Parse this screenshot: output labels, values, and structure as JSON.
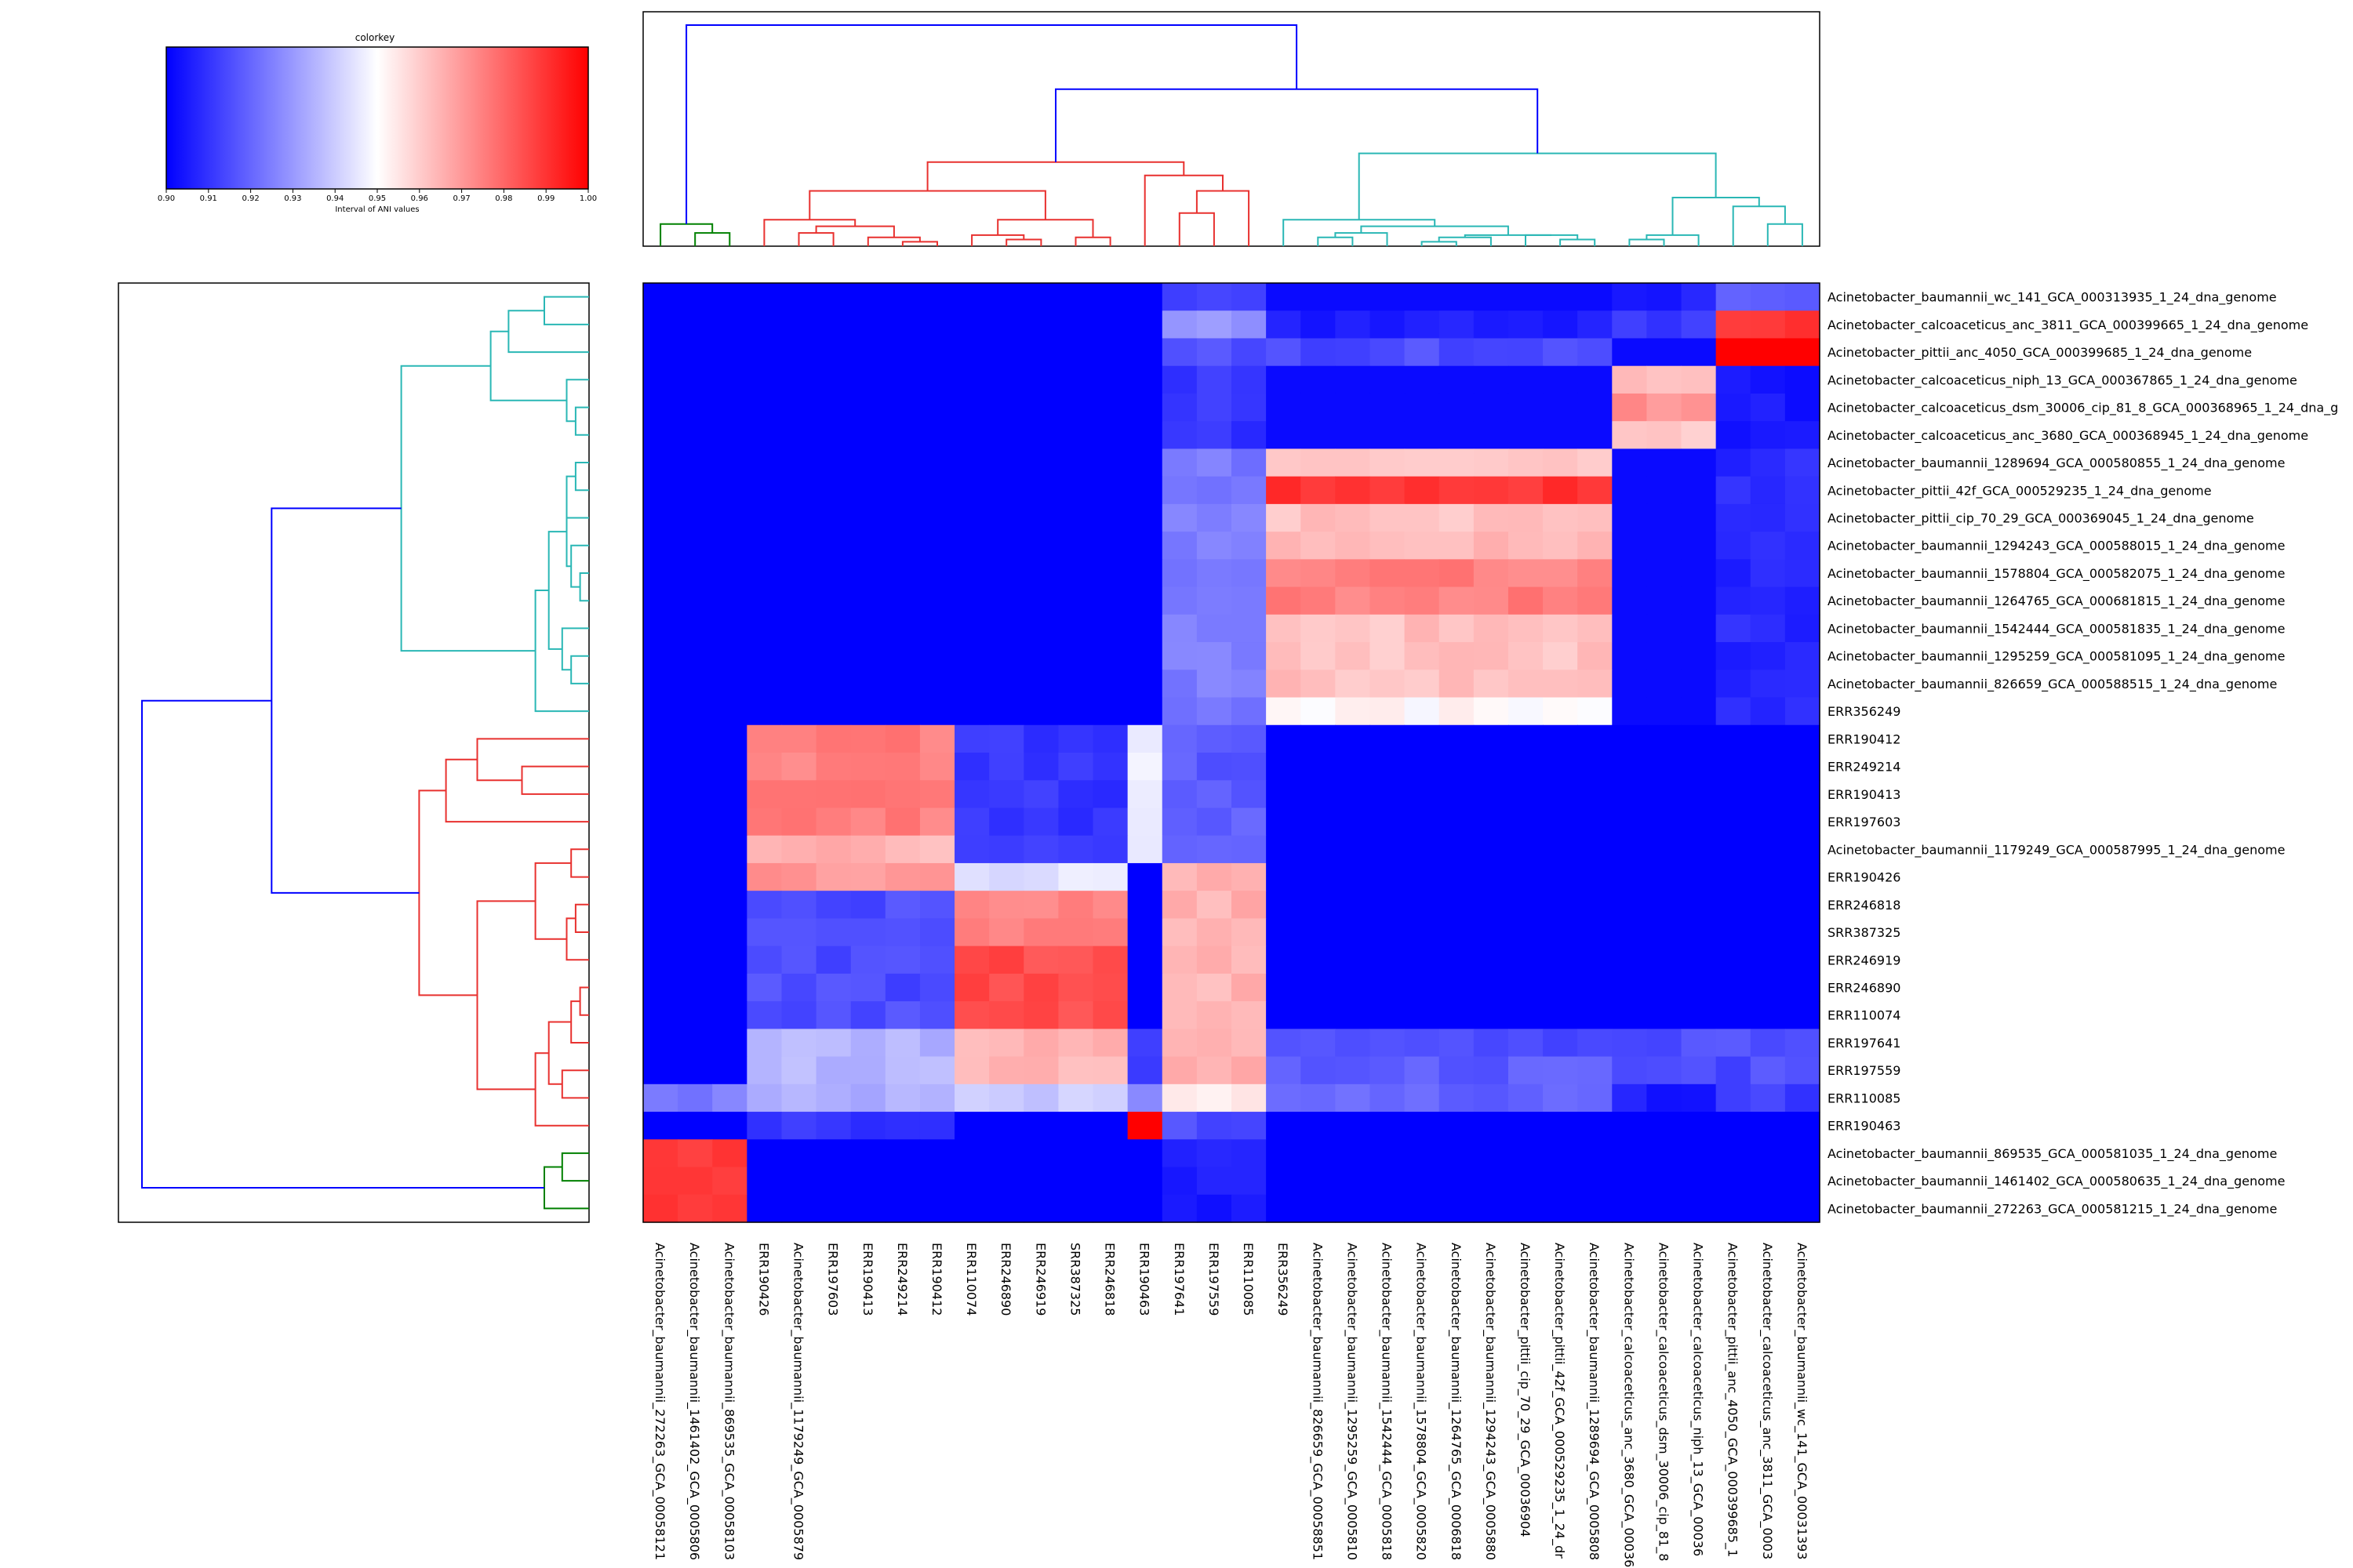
{
  "chart_data": {
    "type": "heatmap",
    "colorkey": {
      "title": "colorkey",
      "label": "Interval of ANI values",
      "range": [
        0.9,
        1.0
      ],
      "colors": [
        "#0000ff",
        "#ffffff",
        "#ff0000"
      ],
      "ticks": [
        "0.90",
        "0.91",
        "0.92",
        "0.93",
        "0.94",
        "0.95",
        "0.96",
        "0.97",
        "0.98",
        "0.99",
        "1.00"
      ]
    },
    "row_labels": [
      "Acinetobacter_baumannii_wc_141_GCA_000313935_1_24_dna_genome",
      "Acinetobacter_calcoaceticus_anc_3811_GCA_000399665_1_24_dna_genome",
      "Acinetobacter_pittii_anc_4050_GCA_000399685_1_24_dna_genome",
      "Acinetobacter_calcoaceticus_niph_13_GCA_000367865_1_24_dna_genome",
      "Acinetobacter_calcoaceticus_dsm_30006_cip_81_8_GCA_000368965_1_24_dna_g",
      "Acinetobacter_calcoaceticus_anc_3680_GCA_000368945_1_24_dna_genome",
      "Acinetobacter_baumannii_1289694_GCA_000580855_1_24_dna_genome",
      "Acinetobacter_pittii_42f_GCA_000529235_1_24_dna_genome",
      "Acinetobacter_pittii_cip_70_29_GCA_000369045_1_24_dna_genome",
      "Acinetobacter_baumannii_1294243_GCA_000588015_1_24_dna_genome",
      "Acinetobacter_baumannii_1578804_GCA_000582075_1_24_dna_genome",
      "Acinetobacter_baumannii_1264765_GCA_000681815_1_24_dna_genome",
      "Acinetobacter_baumannii_1542444_GCA_000581835_1_24_dna_genome",
      "Acinetobacter_baumannii_1295259_GCA_000581095_1_24_dna_genome",
      "Acinetobacter_baumannii_826659_GCA_000588515_1_24_dna_genome",
      "ERR356249",
      "ERR190412",
      "ERR249214",
      "ERR190413",
      "ERR197603",
      "Acinetobacter_baumannii_1179249_GCA_000587995_1_24_dna_genome",
      "ERR190426",
      "ERR246818",
      "SRR387325",
      "ERR246919",
      "ERR246890",
      "ERR110074",
      "ERR197641",
      "ERR197559",
      "ERR110085",
      "ERR190463",
      "Acinetobacter_baumannii_869535_GCA_000581035_1_24_dna_genome",
      "Acinetobacter_baumannii_1461402_GCA_000580635_1_24_dna_genome",
      "Acinetobacter_baumannii_272263_GCA_000581215_1_24_dna_genome"
    ],
    "col_labels": [
      "Acinetobacter_baumannii_272263_GCA_00058121",
      "Acinetobacter_baumannii_1461402_GCA_0005806",
      "Acinetobacter_baumannii_869535_GCA_00058103",
      "ERR190426",
      "Acinetobacter_baumannii_1179249_GCA_0005879",
      "ERR197603",
      "ERR190413",
      "ERR249214",
      "ERR190412",
      "ERR110074",
      "ERR246890",
      "ERR246919",
      "SRR387325",
      "ERR246818",
      "ERR190463",
      "ERR197641",
      "ERR197559",
      "ERR110085",
      "ERR356249",
      "Acinetobacter_baumannii_826659_GCA_00058851",
      "Acinetobacter_baumannii_1295259_GCA_0005810",
      "Acinetobacter_baumannii_1542444_GCA_0005818",
      "Acinetobacter_baumannii_1578804_GCA_0005820",
      "Acinetobacter_baumannii_1264765_GCA_0006818",
      "Acinetobacter_baumannii_1294243_GCA_0005880",
      "Acinetobacter_pittii_cip_70_29_GCA_00036904",
      "Acinetobacter_pittii_42f_GCA_000529235_1_24_dr",
      "Acinetobacter_baumannii_1289694_GCA_0005808",
      "Acinetobacter_calcoaceticus_anc_3680_GCA_00036",
      "Acinetobacter_calcoaceticus_dsm_30006_cip_81_8",
      "Acinetobacter_calcoaceticus_niph_13_GCA_00036",
      "Acinetobacter_pittii_anc_4050_GCA_000399685_1",
      "Acinetobacter_calcoaceticus_anc_3811_GCA_0003",
      "Acinetobacter_baumannii_wc_141_GCA_00031393"
    ],
    "group_columns": [
      0,
      3,
      9,
      14,
      15,
      18,
      28,
      31
    ],
    "block_values": [
      [
        0.9,
        0.9,
        0.9,
        0.9,
        0.913,
        0.902,
        0.905,
        0.918
      ],
      [
        0.9,
        0.9,
        0.9,
        0.9,
        0.929,
        0.905,
        0.912,
        0.99
      ],
      [
        0.9,
        0.9,
        0.9,
        0.9,
        0.915,
        0.915,
        0.902,
        1.0
      ],
      [
        0.9,
        0.9,
        0.9,
        0.9,
        0.91,
        0.902,
        0.962,
        0.904
      ],
      [
        0.9,
        0.9,
        0.9,
        0.9,
        0.91,
        0.902,
        0.972,
        0.904
      ],
      [
        0.9,
        0.9,
        0.9,
        0.9,
        0.91,
        0.902,
        0.962,
        0.904
      ],
      [
        0.9,
        0.9,
        0.9,
        0.9,
        0.924,
        0.962,
        0.902,
        0.908
      ],
      [
        0.9,
        0.9,
        0.9,
        0.9,
        0.924,
        0.99,
        0.902,
        0.908
      ],
      [
        0.9,
        0.9,
        0.9,
        0.9,
        0.924,
        0.962,
        0.902,
        0.908
      ],
      [
        0.9,
        0.9,
        0.9,
        0.9,
        0.924,
        0.965,
        0.902,
        0.908
      ],
      [
        0.9,
        0.9,
        0.9,
        0.9,
        0.924,
        0.975,
        0.902,
        0.908
      ],
      [
        0.9,
        0.9,
        0.9,
        0.9,
        0.924,
        0.975,
        0.902,
        0.908
      ],
      [
        0.9,
        0.9,
        0.9,
        0.9,
        0.924,
        0.962,
        0.902,
        0.908
      ],
      [
        0.9,
        0.9,
        0.9,
        0.9,
        0.924,
        0.962,
        0.902,
        0.908
      ],
      [
        0.9,
        0.9,
        0.9,
        0.9,
        0.924,
        0.962,
        0.902,
        0.908
      ],
      [
        0.9,
        0.9,
        0.9,
        0.9,
        0.924,
        0.951,
        0.902,
        0.908
      ],
      [
        0.9,
        0.975,
        0.911,
        0.945,
        0.918,
        0.9,
        0.9,
        0.9
      ],
      [
        0.9,
        0.975,
        0.911,
        0.945,
        0.918,
        0.9,
        0.9,
        0.9
      ],
      [
        0.9,
        0.975,
        0.911,
        0.945,
        0.918,
        0.9,
        0.9,
        0.9
      ],
      [
        0.9,
        0.975,
        0.911,
        0.945,
        0.918,
        0.9,
        0.9,
        0.9
      ],
      [
        0.9,
        0.965,
        0.911,
        0.945,
        0.918,
        0.9,
        0.9,
        0.9
      ],
      [
        0.9,
        0.97,
        0.945,
        0.9,
        0.965,
        0.9,
        0.9,
        0.9
      ],
      [
        0.9,
        0.915,
        0.975,
        0.9,
        0.965,
        0.9,
        0.9,
        0.9
      ],
      [
        0.9,
        0.915,
        0.975,
        0.9,
        0.965,
        0.9,
        0.9,
        0.9
      ],
      [
        0.9,
        0.915,
        0.985,
        0.9,
        0.965,
        0.9,
        0.9,
        0.9
      ],
      [
        0.9,
        0.915,
        0.985,
        0.9,
        0.965,
        0.9,
        0.9,
        0.9
      ],
      [
        0.9,
        0.915,
        0.985,
        0.9,
        0.965,
        0.9,
        0.9,
        0.9
      ],
      [
        0.9,
        0.935,
        0.965,
        0.912,
        0.965,
        0.915,
        0.915,
        0.915
      ],
      [
        0.9,
        0.935,
        0.965,
        0.912,
        0.965,
        0.918,
        0.915,
        0.915
      ],
      [
        0.925,
        0.935,
        0.94,
        0.925,
        0.955,
        0.92,
        0.905,
        0.912
      ],
      [
        0.9,
        0.91,
        0.9,
        1.0,
        0.915,
        0.9,
        0.9,
        0.9
      ],
      [
        0.99,
        0.9,
        0.9,
        0.9,
        0.905,
        0.9,
        0.9,
        0.9
      ],
      [
        0.99,
        0.9,
        0.9,
        0.9,
        0.905,
        0.9,
        0.9,
        0.9
      ],
      [
        0.99,
        0.9,
        0.9,
        0.9,
        0.905,
        0.9,
        0.9,
        0.9
      ]
    ]
  }
}
